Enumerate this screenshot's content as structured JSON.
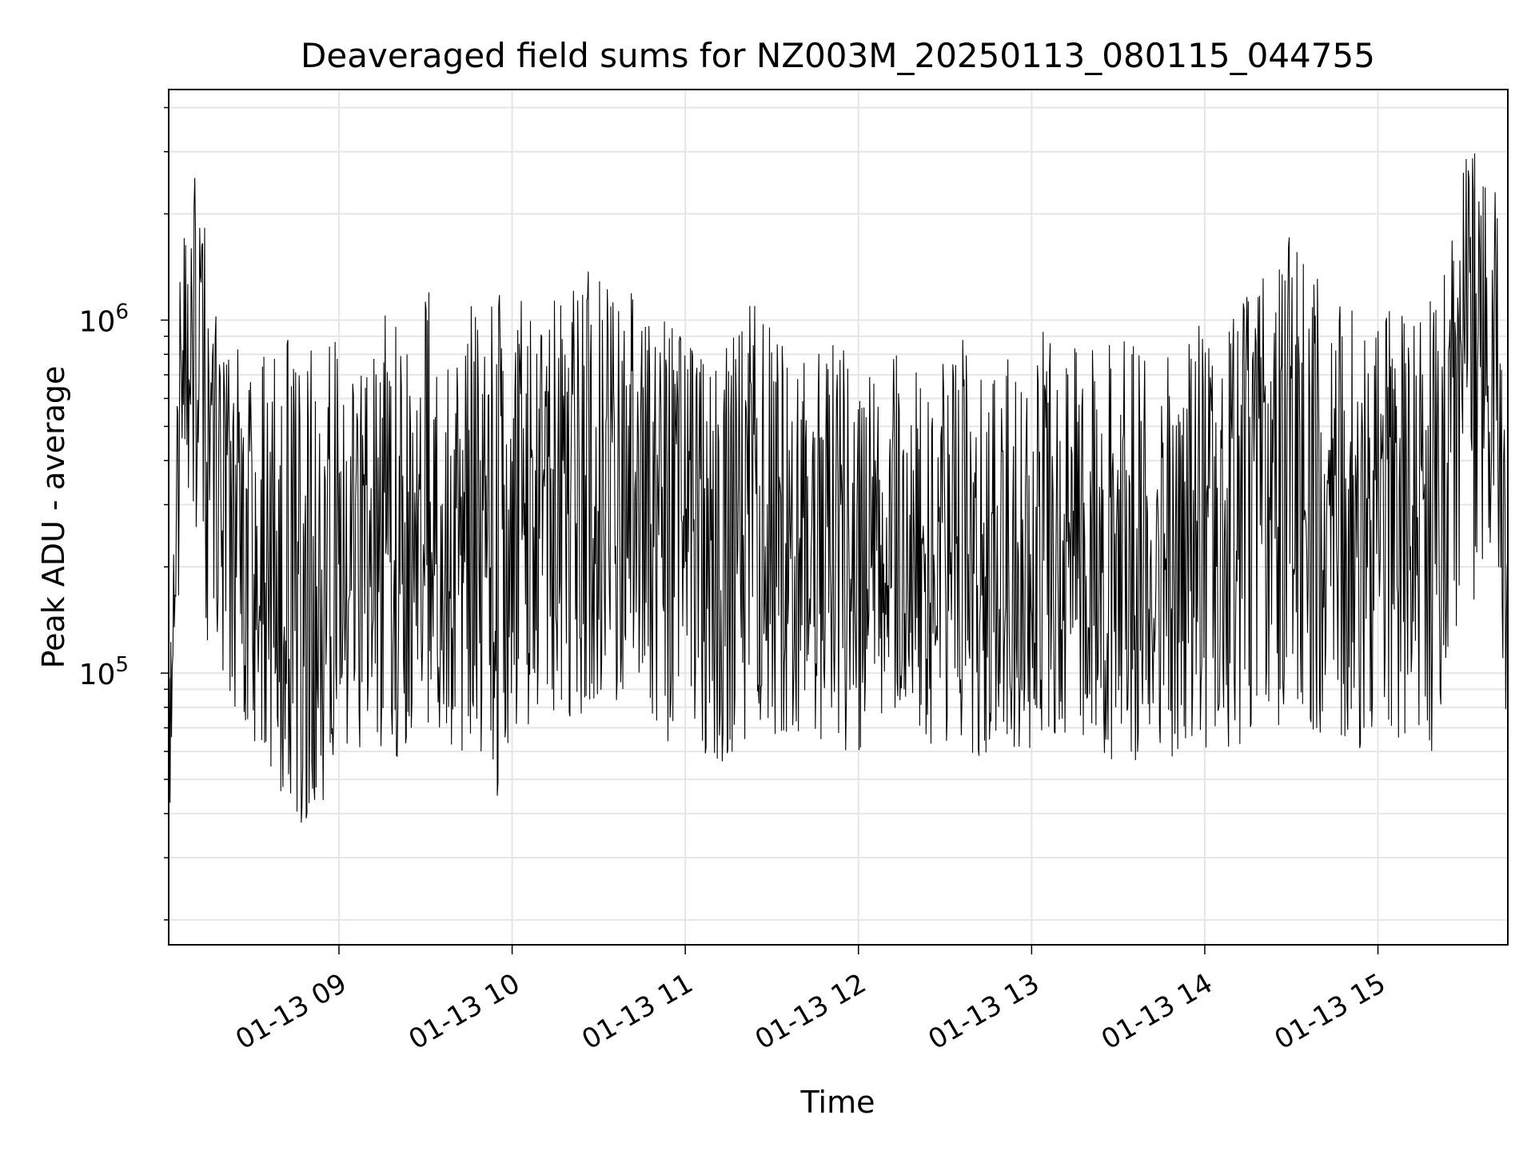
{
  "chart_data": {
    "type": "line",
    "title": "Deaveraged field sums for NZ003M_20250113_080115_044755",
    "xlabel": "Time",
    "ylabel": "Peak ADU - average",
    "yscale": "log",
    "ylim": [
      17000,
      4500000
    ],
    "xlim": [
      "01-13 08:01",
      "01-13 15:45"
    ],
    "grid": true,
    "line_color": "#000000",
    "grid_color": "#e6e6e6",
    "x_ticks": [
      "01-13 09",
      "01-13 10",
      "01-13 11",
      "01-13 12",
      "01-13 13",
      "01-13 14",
      "01-13 15"
    ],
    "y_ticks": [
      {
        "mantissa": "10",
        "exponent": "5"
      },
      {
        "mantissa": "10",
        "exponent": "6"
      }
    ],
    "series": [
      {
        "values_described_by": "per-time-segment envelope (median, lower, upper)",
        "x": [
          "08:01",
          "08:06",
          "08:11",
          "08:16",
          "08:21",
          "08:26",
          "08:31",
          "08:36",
          "08:41",
          "08:46",
          "08:51",
          "08:56",
          "09:01",
          "09:06",
          "09:11",
          "09:16",
          "09:21",
          "09:26",
          "09:31",
          "09:36",
          "09:41",
          "09:46",
          "09:51",
          "09:56",
          "10:01",
          "10:06",
          "10:11",
          "10:16",
          "10:21",
          "10:26",
          "10:31",
          "10:36",
          "10:41",
          "10:46",
          "10:51",
          "10:56",
          "11:01",
          "11:06",
          "11:11",
          "11:16",
          "11:21",
          "11:26",
          "11:31",
          "11:36",
          "11:41",
          "11:46",
          "11:51",
          "11:56",
          "12:01",
          "12:06",
          "12:11",
          "12:16",
          "12:21",
          "12:26",
          "12:31",
          "12:36",
          "12:41",
          "12:46",
          "12:51",
          "12:56",
          "13:01",
          "13:06",
          "13:11",
          "13:16",
          "13:21",
          "13:26",
          "13:31",
          "13:36",
          "13:41",
          "13:46",
          "13:51",
          "13:56",
          "14:01",
          "14:06",
          "14:11",
          "14:16",
          "14:21",
          "14:26",
          "14:31",
          "14:36",
          "14:41",
          "14:46",
          "14:51",
          "14:56",
          "15:01",
          "15:06",
          "15:11",
          "15:16",
          "15:21",
          "15:26",
          "15:31",
          "15:36",
          "15:41",
          "15:45"
        ],
        "median": [
          50000,
          1200000,
          1000000,
          500000,
          350000,
          300000,
          200000,
          250000,
          150000,
          90000,
          80000,
          150000,
          200000,
          220000,
          230000,
          250000,
          250000,
          240000,
          250000,
          260000,
          270000,
          280000,
          250000,
          200000,
          230000,
          280000,
          300000,
          290000,
          300000,
          320000,
          330000,
          310000,
          290000,
          300000,
          280000,
          250000,
          230000,
          240000,
          220000,
          240000,
          300000,
          290000,
          260000,
          220000,
          200000,
          220000,
          230000,
          220000,
          210000,
          200000,
          220000,
          210000,
          180000,
          190000,
          200000,
          210000,
          200000,
          220000,
          200000,
          180000,
          220000,
          230000,
          220000,
          250000,
          230000,
          200000,
          220000,
          200000,
          190000,
          180000,
          200000,
          210000,
          230000,
          240000,
          250000,
          270000,
          300000,
          330000,
          360000,
          350000,
          300000,
          250000,
          260000,
          280000,
          270000,
          300000,
          280000,
          300000,
          280000,
          400000,
          1200000,
          1100000,
          900000,
          100000
        ],
        "low": [
          30000,
          350000,
          250000,
          80000,
          90000,
          70000,
          55000,
          50000,
          45000,
          35000,
          35000,
          45000,
          55000,
          60000,
          65000,
          60000,
          55000,
          60000,
          65000,
          65000,
          60000,
          60000,
          55000,
          40000,
          60000,
          70000,
          75000,
          75000,
          70000,
          75000,
          80000,
          80000,
          80000,
          75000,
          70000,
          60000,
          55000,
          60000,
          55000,
          55000,
          65000,
          70000,
          65000,
          60000,
          55000,
          60000,
          65000,
          60000,
          60000,
          55000,
          60000,
          60000,
          55000,
          55000,
          60000,
          60000,
          55000,
          60000,
          55000,
          55000,
          60000,
          60000,
          60000,
          65000,
          60000,
          55000,
          60000,
          55000,
          55000,
          50000,
          55000,
          60000,
          60000,
          60000,
          60000,
          65000,
          65000,
          70000,
          70000,
          70000,
          65000,
          60000,
          60000,
          60000,
          60000,
          60000,
          60000,
          60000,
          60000,
          70000,
          130000,
          200000,
          250000,
          40000
        ],
        "high": [
          90000,
          2800000,
          2600000,
          1300000,
          800000,
          900000,
          1100000,
          700000,
          1000000,
          850000,
          850000,
          900000,
          900000,
          800000,
          1000000,
          1100000,
          1100000,
          900000,
          1200000,
          1300000,
          1000000,
          1100000,
          1400000,
          1200000,
          1500000,
          1200000,
          1100000,
          1300000,
          1300000,
          1400000,
          1300000,
          1200000,
          1200000,
          1200000,
          1000000,
          1000000,
          900000,
          950000,
          1000000,
          1000000,
          1200000,
          1100000,
          900000,
          800000,
          800000,
          900000,
          900000,
          800000,
          700000,
          700000,
          800000,
          900000,
          700000,
          800000,
          800000,
          900000,
          700000,
          900000,
          800000,
          700000,
          850000,
          1000000,
          900000,
          1000000,
          950000,
          900000,
          950000,
          900000,
          800000,
          750000,
          900000,
          950000,
          1000000,
          1050000,
          1100000,
          1200000,
          1400000,
          1600000,
          1800000,
          1500000,
          1200000,
          1100000,
          1100000,
          1200000,
          1100000,
          1100000,
          1100000,
          1100000,
          1200000,
          2000000,
          3500000,
          3200000,
          2800000,
          250000
        ]
      }
    ]
  }
}
